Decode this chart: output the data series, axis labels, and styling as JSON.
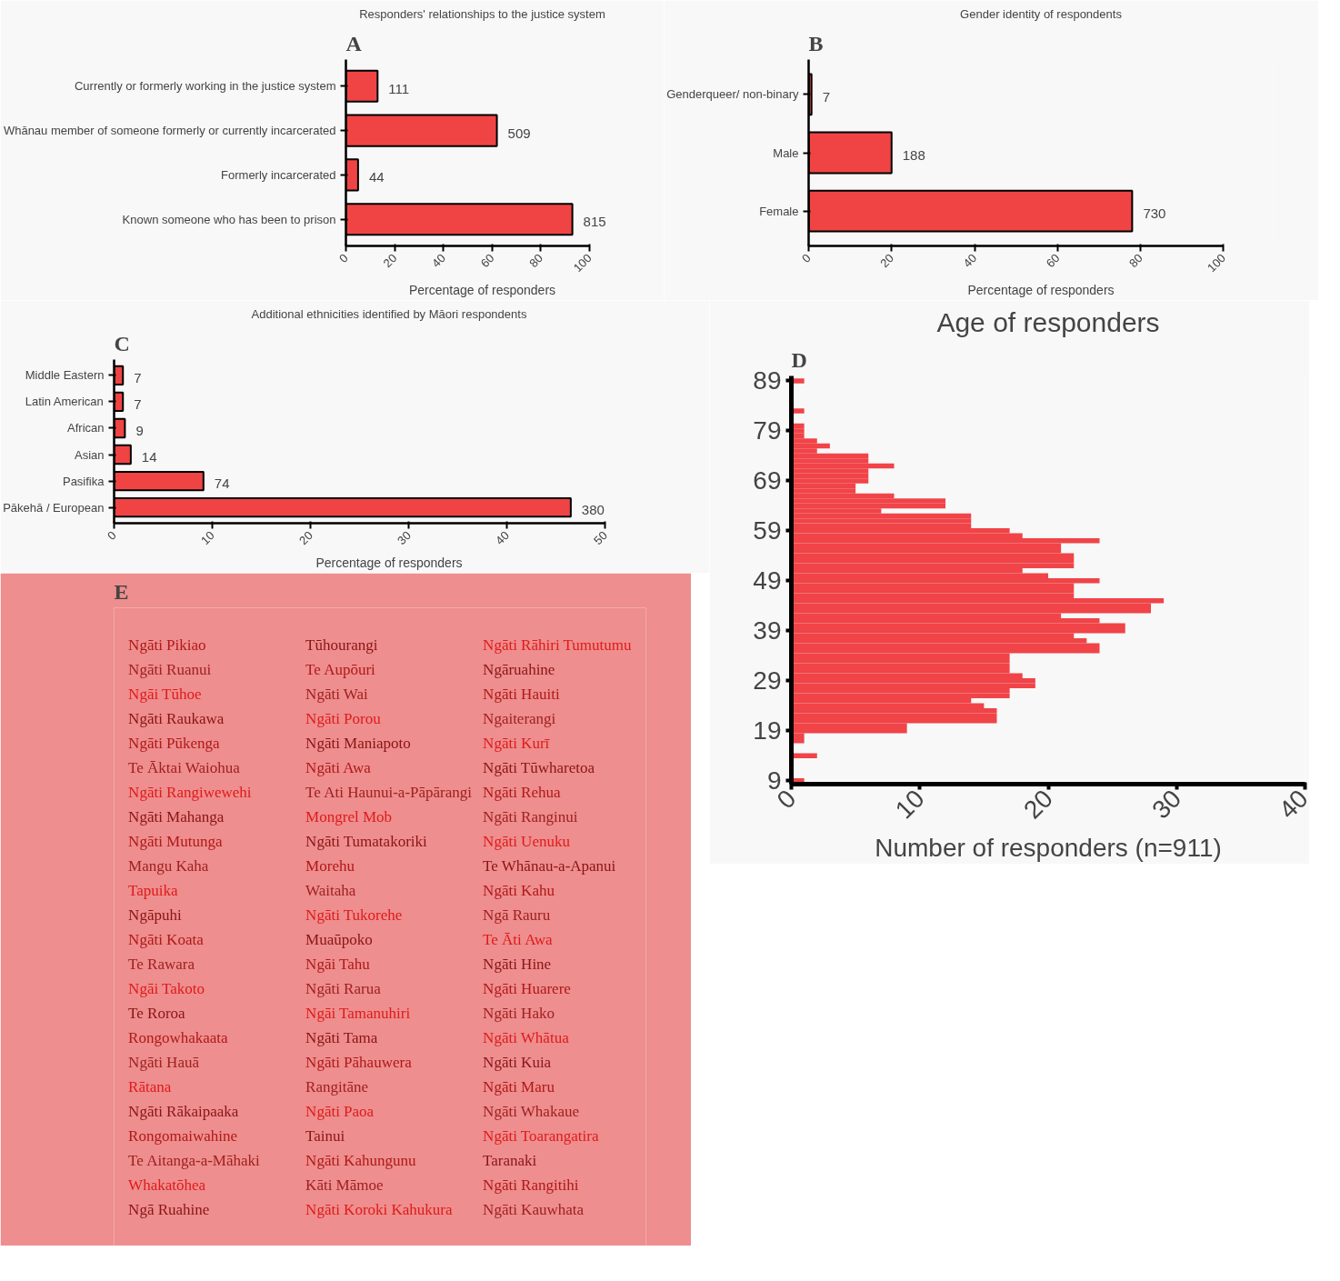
{
  "chart_data": [
    {
      "type": "bar",
      "orientation": "horizontal",
      "title": "Responders' relationships to the justice system",
      "xlabel": "Percentage of responders",
      "annotations": [
        "A",
        {
          "text": "111",
          "x": 13,
          "y": "Currently or formerly working in the justice system"
        },
        {
          "text": "509",
          "x": 62,
          "y": "Whānau member of someone formerly or currently incarcerated"
        },
        {
          "text": "44",
          "x": 5,
          "y": "Formerly incarcerated"
        },
        {
          "text": "815",
          "x": 93,
          "y": "Known someone who has been to prison"
        }
      ],
      "categories": [
        "Currently or formerly working in the justice system",
        "Whānau member of someone formerly or currently incarcerated",
        "Formerly incarcerated",
        "Known someone who has been to prison"
      ],
      "values": [
        13,
        62,
        5,
        93
      ],
      "color": "#f04444",
      "xlim": [
        0,
        100
      ],
      "xticks": [
        0,
        20,
        40,
        60,
        80,
        100
      ]
    },
    {
      "type": "bar",
      "orientation": "horizontal",
      "title": "Gender identity of respondents",
      "xlabel": "Percentage of responders",
      "annotations": [
        "B",
        {
          "text": "7",
          "x": 0.7,
          "y": "Genderqueer/ non-binary"
        },
        {
          "text": "188",
          "x": 20,
          "y": "Male"
        },
        {
          "text": "730",
          "x": 78,
          "y": "Female"
        }
      ],
      "categories": [
        "Genderqueer/ non-binary",
        "Male",
        "Female"
      ],
      "values": [
        0.7,
        20,
        78
      ],
      "color": "#f04444",
      "xlim": [
        0,
        100
      ],
      "xticks": [
        0,
        20,
        40,
        60,
        80,
        100
      ]
    },
    {
      "type": "bar",
      "orientation": "horizontal",
      "title": "Additional ethnicities identified by Māori respondents",
      "xlabel": "Percentage of responders",
      "annotations": [
        "C",
        {
          "text": "7",
          "x": 0.9,
          "y": "Middle Eastern"
        },
        {
          "text": "7",
          "x": 0.9,
          "y": "Latin American"
        },
        {
          "text": "9",
          "x": 1.1,
          "y": "African"
        },
        {
          "text": "14",
          "x": 1.7,
          "y": "Asian"
        },
        {
          "text": "74",
          "x": 9.1,
          "y": "Pasifika"
        },
        {
          "text": "380",
          "x": 46.5,
          "y": "Pākehā / European"
        }
      ],
      "categories": [
        "Middle Eastern",
        "Latin American",
        "African",
        "Asian",
        "Pasifika",
        "Pākehā / European"
      ],
      "values": [
        0.9,
        0.9,
        1.1,
        1.7,
        9.1,
        46.5
      ],
      "color": "#f04444",
      "xlim": [
        0,
        50
      ],
      "xticks": [
        0,
        10,
        20,
        30,
        40,
        50
      ]
    },
    {
      "type": "histogram",
      "orientation": "horizontal",
      "title": "Age of responders",
      "xlabel": "Number of responders (n=911)",
      "annotations": [
        "D"
      ],
      "color": "#f04448",
      "bins": [
        8.5,
        9.5,
        10.5,
        11.5,
        12.5,
        13.5,
        14.5,
        15.5,
        16.5,
        17.5,
        18.5,
        19.5,
        20.5,
        21.5,
        22.5,
        23.5,
        24.5,
        25.5,
        26.5,
        27.5,
        28.5,
        29.5,
        30.5,
        31.5,
        32.5,
        33.5,
        34.5,
        35.5,
        36.5,
        37.5,
        38.5,
        39.5,
        40.5,
        41.5,
        42.5,
        43.5,
        44.5,
        45.5,
        46.5,
        47.5,
        48.5,
        49.5,
        50.5,
        51.5,
        52.5,
        53.5,
        54.5,
        55.5,
        56.5,
        57.5,
        58.5,
        59.5,
        60.5,
        61.5,
        62.5,
        63.5,
        64.5,
        65.5,
        66.5,
        67.5,
        68.5,
        69.5,
        70.5,
        71.5,
        72.5,
        73.5,
        74.5,
        75.5,
        76.5,
        77.5,
        78.5,
        79.5,
        80.5,
        81.5,
        82.5,
        83.5,
        84.5,
        85.5,
        86.5,
        87.5,
        88.5,
        89.5
      ],
      "values": [
        1,
        0,
        0,
        0,
        0,
        2,
        0,
        0,
        1,
        1,
        9,
        9,
        16,
        16,
        16,
        15,
        14,
        17,
        17,
        19,
        19,
        18,
        17,
        17,
        17,
        17,
        24,
        24,
        23,
        22,
        26,
        26,
        24,
        21,
        28,
        28,
        29,
        22,
        22,
        22,
        24,
        20,
        18,
        22,
        22,
        22,
        21,
        21,
        24,
        18,
        17,
        14,
        14,
        14,
        7,
        12,
        12,
        8,
        5,
        5,
        6,
        6,
        6,
        8,
        6,
        6,
        2,
        3,
        2,
        1,
        1,
        1,
        0,
        0,
        1,
        0,
        0,
        0,
        0,
        0,
        1
      ],
      "xlim": [
        0,
        40
      ],
      "xticks": [
        0,
        10,
        20,
        30,
        40
      ],
      "ylim": [
        8.3,
        90
      ],
      "yticks": [
        9,
        19,
        29,
        39,
        49,
        59,
        69,
        79,
        89
      ]
    },
    {
      "type": "other",
      "annotations": [
        "E",
        "Ngāti Pikiao",
        "Tūhourangi",
        "Ngāti Rāhiri Tumutumu",
        "Ngāti Ruanui",
        "Te Aupōuri",
        "Ngāruahine",
        "Ngāi Tūhoe",
        "Ngāti Wai",
        "Ngāti Hauiti",
        "Ngāti Raukawa",
        "Ngāti Porou",
        "Ngaiterangi",
        "Ngāti Pūkenga",
        "Ngāti Maniapoto",
        "Ngāti Kurī",
        "Te Āktai Waiohua",
        "Ngāti Awa",
        "Ngāti Tūwharetoa",
        "Ngāti Rangiwewehi",
        "Te Ati Haunui-a-Pāpārangi",
        "Ngāti Rehua",
        "Ngāti Mahanga",
        "Mongrel Mob",
        "Ngāti Ranginui",
        "Ngāti Mutunga",
        "Ngāti Tumatakoriki",
        "Ngāti Uenuku",
        "Mangu Kaha",
        "Morehu",
        "Te Whānau-a-Apanui",
        "Tapuika",
        "Waitaha",
        "Ngāti Kahu",
        "Ngāpuhi",
        "Ngāti Tukorehe",
        "Ngā Rauru",
        "Ngāti Koata",
        "Muaūpoko",
        "Te Āti Awa",
        "Te Rawara",
        "Ngāi Tahu",
        "Ngāti Hine",
        "Ngāi Takoto",
        "Ngāti Rarua",
        "Ngāti Huarere",
        "Te Roroa",
        "Ngāi Tamanuhiri",
        "Ngāti Hako",
        "Rongowhakaata",
        "Ngāti Tama",
        "Ngāti Whātua",
        "Ngāti Hauā",
        "Ngāti Pāhauwera",
        "Ngāti Kuia",
        "Rātana",
        "Rangitāne",
        "Ngāti Maru",
        "Ngāti Rākaipaaka",
        "Ngāti Paoa",
        "Ngāti Whakaue",
        "Rongomaiwahine",
        "Tainui",
        "Ngāti Toarangatira",
        "Te Aitanga-a-Māhaki",
        "Ngāti Kahungunu",
        "Taranaki",
        "Whakatōhea",
        "Kāti Māmoe",
        "Ngāti Rangitihi",
        "Ngā Ruahine",
        "Ngāti Koroki Kahukura",
        "Ngāti Kauwhata"
      ]
    }
  ]
}
